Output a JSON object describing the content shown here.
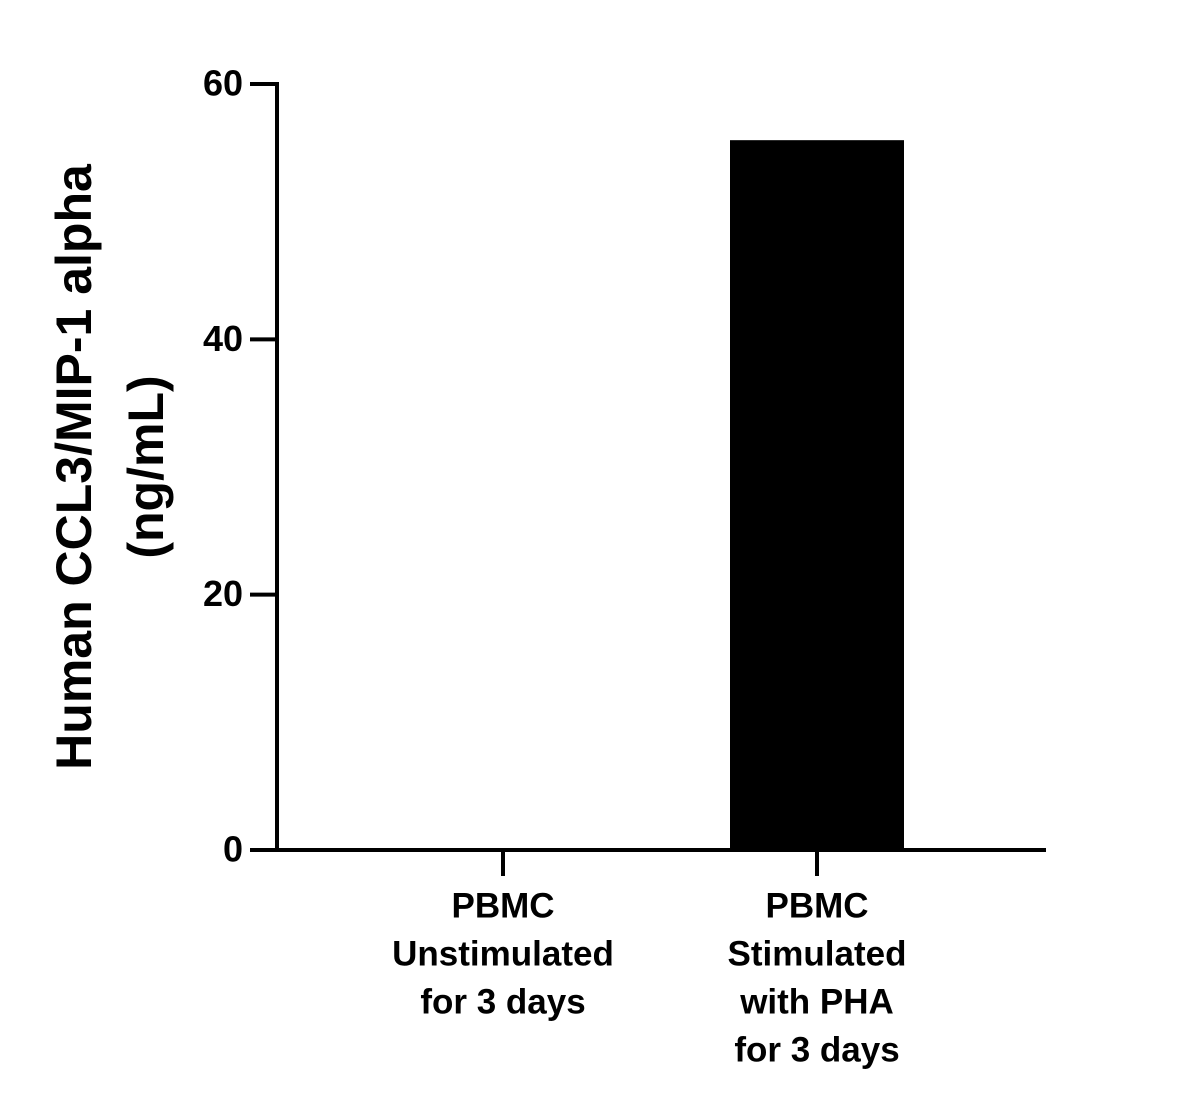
{
  "chart_data": {
    "type": "bar",
    "y_label": [
      "Human CCL3/MIP-1 alpha",
      "(ng/mL)"
    ],
    "categories": [
      [
        "PBMC",
        "Unstimulated",
        "for 3 days"
      ],
      [
        "PBMC",
        "Stimulated",
        "with PHA",
        "for 3 days"
      ]
    ],
    "values": [
      0,
      55.6
    ],
    "color": "#000000",
    "ylim": [
      0,
      60
    ],
    "yticks": [
      0,
      20,
      40,
      60
    ],
    "grid": false
  }
}
